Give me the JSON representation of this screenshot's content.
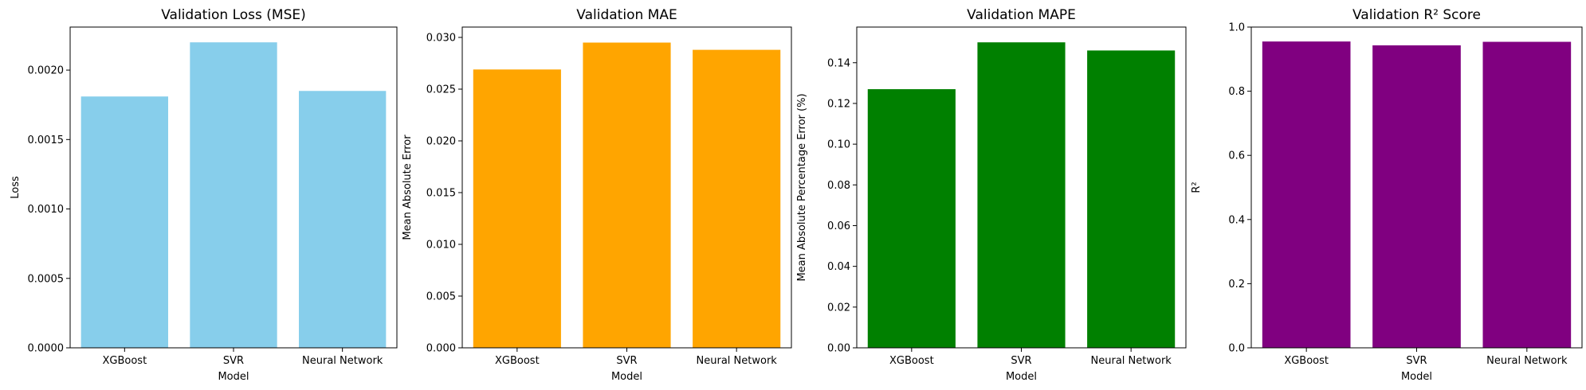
{
  "chart_data": [
    {
      "type": "bar",
      "title": "Validation Loss (MSE)",
      "xlabel": "Model",
      "ylabel": "Loss",
      "categories": [
        "XGBoost",
        "SVR",
        "Neural Network"
      ],
      "values": [
        0.00181,
        0.0022,
        0.00185
      ],
      "ylim": [
        0,
        0.00231
      ],
      "yticks": [
        "0.0000",
        "0.0005",
        "0.0010",
        "0.0015",
        "0.0020"
      ],
      "ytick_values": [
        0,
        0.0005,
        0.001,
        0.0015,
        0.002
      ],
      "color": "#87ceeb",
      "grid": false
    },
    {
      "type": "bar",
      "title": "Validation MAE",
      "xlabel": "Model",
      "ylabel": "Mean Absolute Error",
      "categories": [
        "XGBoost",
        "SVR",
        "Neural Network"
      ],
      "values": [
        0.0269,
        0.0295,
        0.0288
      ],
      "ylim": [
        0,
        0.031
      ],
      "yticks": [
        "0.000",
        "0.005",
        "0.010",
        "0.015",
        "0.020",
        "0.025",
        "0.030"
      ],
      "ytick_values": [
        0,
        0.005,
        0.01,
        0.015,
        0.02,
        0.025,
        0.03
      ],
      "color": "#ffa500",
      "grid": false
    },
    {
      "type": "bar",
      "title": "Validation MAPE",
      "xlabel": "Model",
      "ylabel": "Mean Absolute Percentage Error (%)",
      "categories": [
        "XGBoost",
        "SVR",
        "Neural Network"
      ],
      "values": [
        0.127,
        0.15,
        0.146
      ],
      "ylim": [
        0,
        0.1575
      ],
      "yticks": [
        "0.00",
        "0.02",
        "0.04",
        "0.06",
        "0.08",
        "0.10",
        "0.12",
        "0.14"
      ],
      "ytick_values": [
        0,
        0.02,
        0.04,
        0.06,
        0.08,
        0.1,
        0.12,
        0.14
      ],
      "color": "#008000",
      "grid": false
    },
    {
      "type": "bar",
      "title": "Validation R² Score",
      "xlabel": "Model",
      "ylabel": "R²",
      "categories": [
        "XGBoost",
        "SVR",
        "Neural Network"
      ],
      "values": [
        0.955,
        0.943,
        0.954
      ],
      "ylim": [
        0,
        1.0
      ],
      "yticks": [
        "0.0",
        "0.2",
        "0.4",
        "0.6",
        "0.8",
        "1.0"
      ],
      "ytick_values": [
        0,
        0.2,
        0.4,
        0.6,
        0.8,
        1.0
      ],
      "color": "#800080",
      "grid": false
    }
  ]
}
